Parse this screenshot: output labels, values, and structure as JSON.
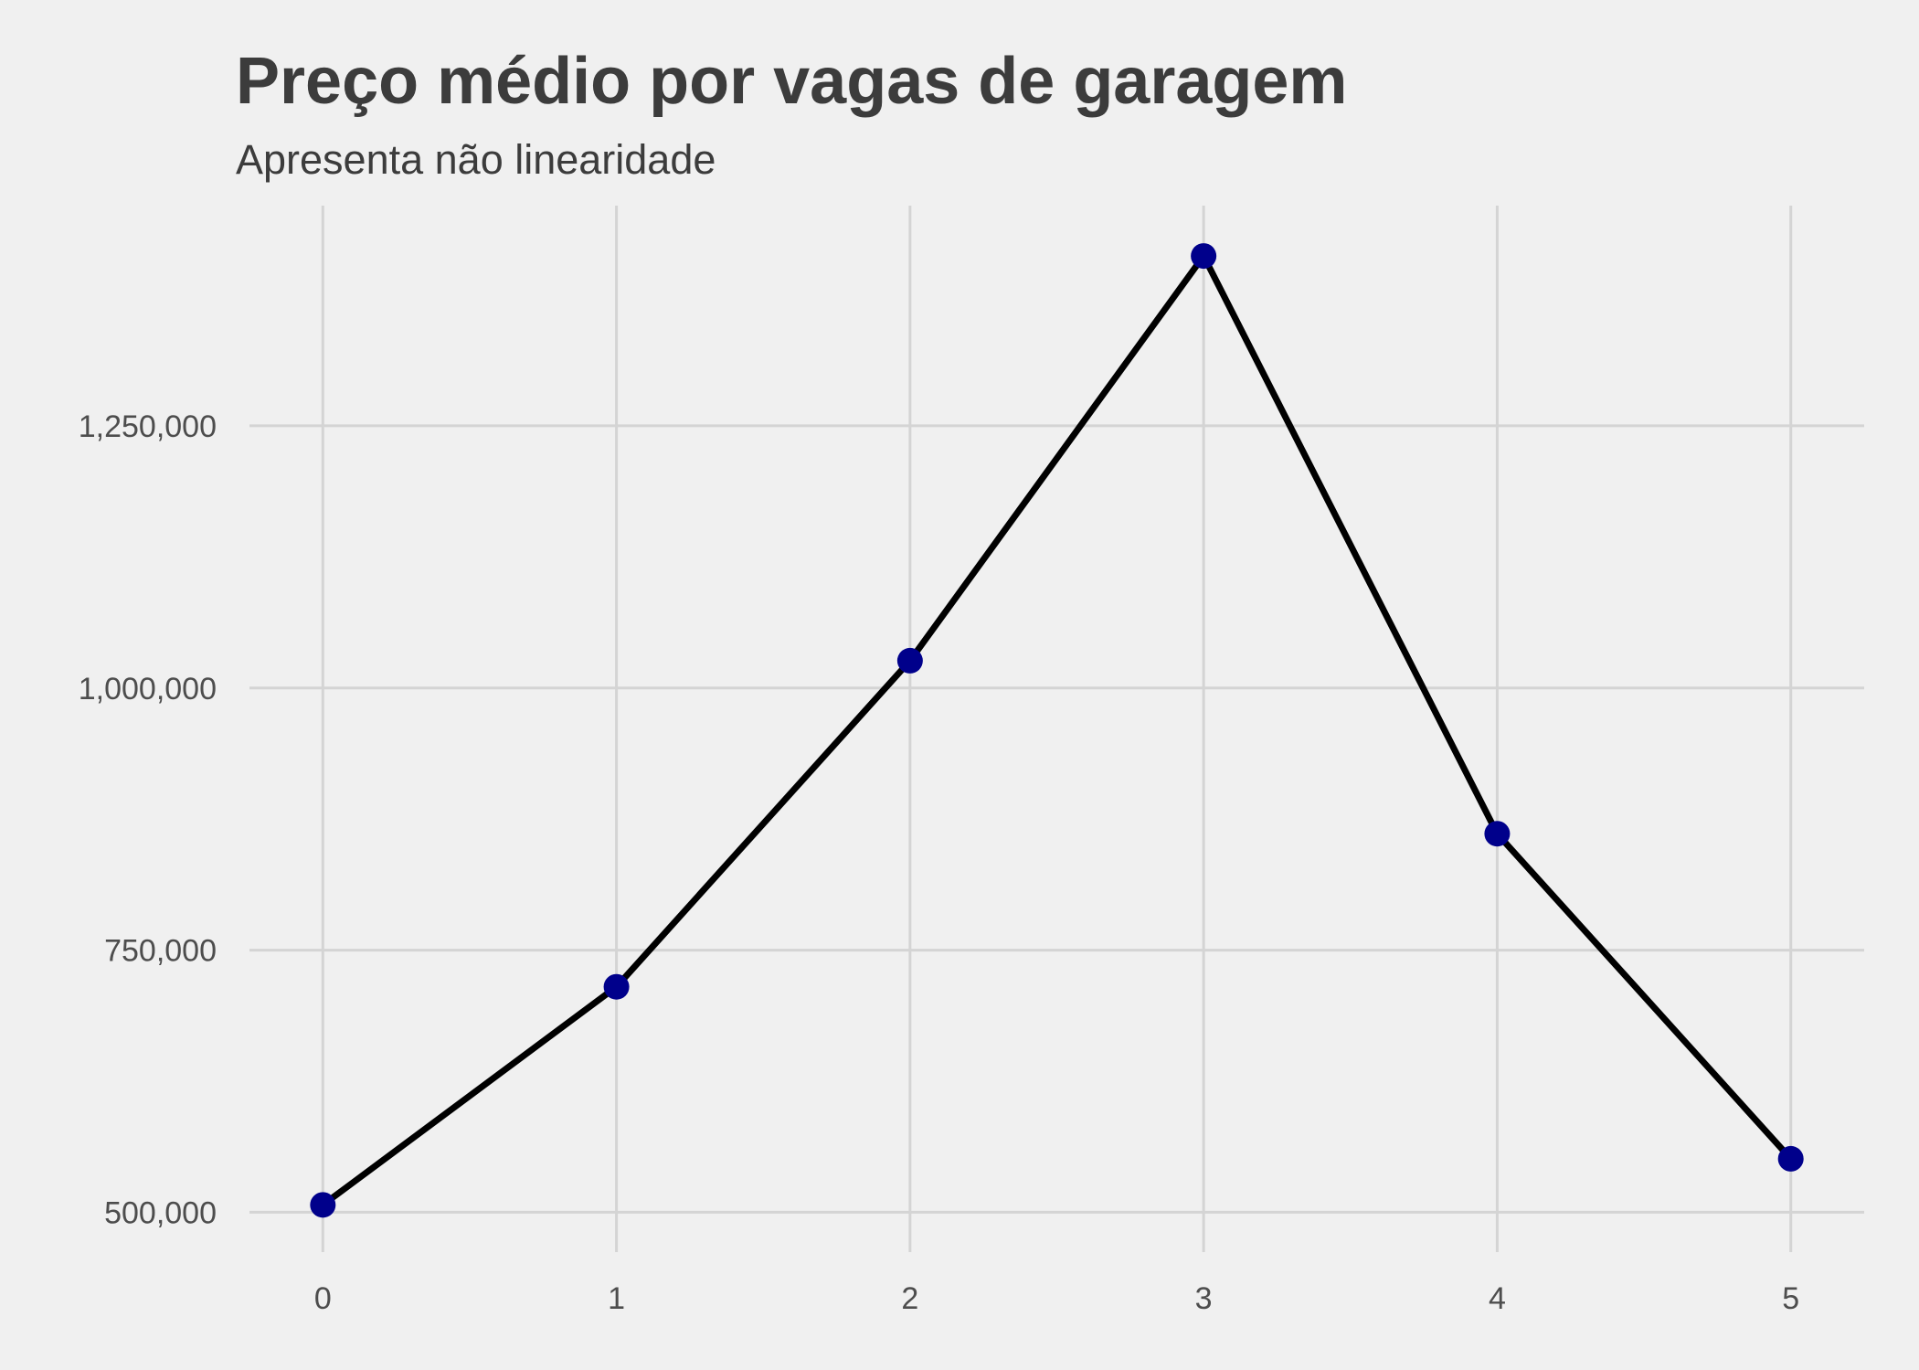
{
  "chart_data": {
    "type": "line",
    "title": "Preço médio por vagas de garagem",
    "subtitle": "Apresenta não linearidade",
    "xlabel": "",
    "ylabel": "",
    "x": [
      0,
      1,
      2,
      3,
      4,
      5
    ],
    "x_tick_labels": [
      "0",
      "1",
      "2",
      "3",
      "4",
      "5"
    ],
    "y_ticks": [
      500000,
      750000,
      1000000,
      1250000
    ],
    "y_tick_labels": [
      "500,000",
      "750,000",
      "1,000,000",
      "1,250,000"
    ],
    "xlim": [
      -0.25,
      5.25
    ],
    "ylim": [
      462000,
      1460000
    ],
    "grid": true,
    "legend": "none",
    "series": [
      {
        "values": [
          507000,
          715000,
          1026000,
          1412000,
          861000,
          551000
        ],
        "line_color": "#000000",
        "point_color": "#00008b"
      }
    ],
    "colors": {
      "background": "#f0f0f0",
      "grid": "#d4d4d4",
      "text": "#3c3c3c"
    }
  }
}
